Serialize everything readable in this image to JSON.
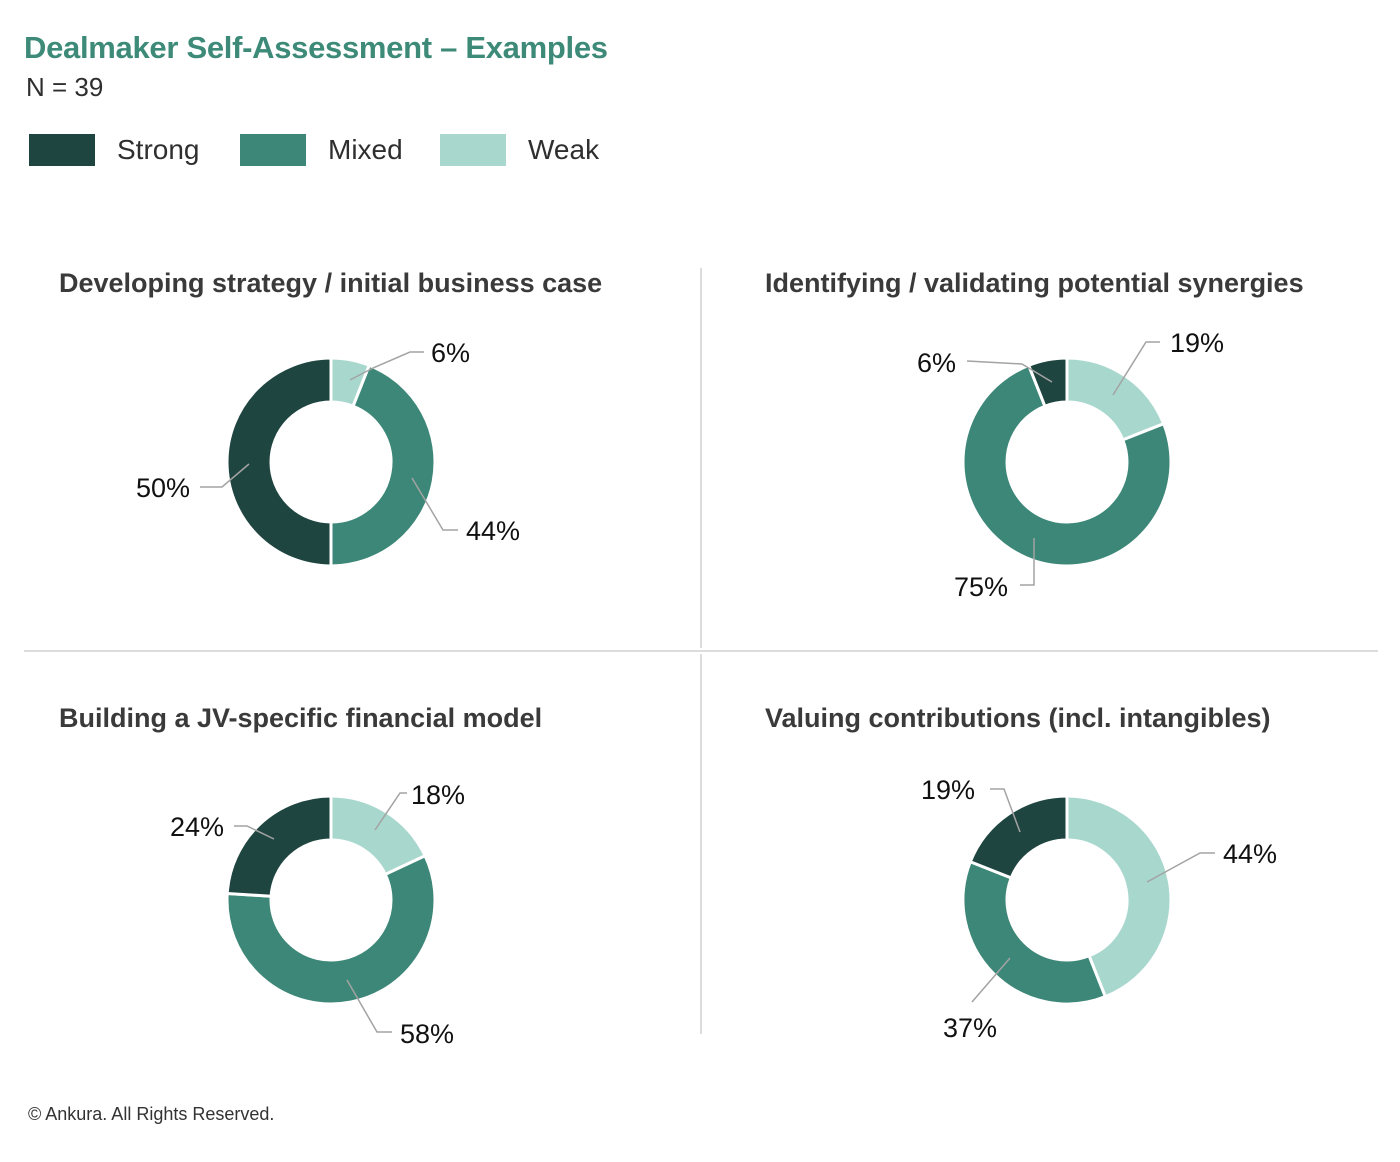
{
  "header": {
    "title": "Dealmaker Self-Assessment – Examples",
    "subtitle": "N = 39"
  },
  "legend": [
    {
      "label": "Strong",
      "color": "#1f4540"
    },
    {
      "label": "Mixed",
      "color": "#3d8778"
    },
    {
      "label": "Weak",
      "color": "#a8d8cd"
    }
  ],
  "chart_data": [
    {
      "type": "pie",
      "title": "Developing strategy / initial business case",
      "categories": [
        "Weak",
        "Mixed",
        "Strong"
      ],
      "values": [
        6,
        44,
        50
      ],
      "labels": [
        "6%",
        "44%",
        "50%"
      ]
    },
    {
      "type": "pie",
      "title": "Identifying / validating potential synergies",
      "categories": [
        "Weak",
        "Mixed",
        "Strong"
      ],
      "values": [
        19,
        75,
        6
      ],
      "labels": [
        "19%",
        "75%",
        "6%"
      ]
    },
    {
      "type": "pie",
      "title": "Building a JV-specific financial model",
      "categories": [
        "Weak",
        "Mixed",
        "Strong"
      ],
      "values": [
        18,
        58,
        24
      ],
      "labels": [
        "18%",
        "58%",
        "24%"
      ]
    },
    {
      "type": "pie",
      "title": "Valuing contributions (incl. intangibles)",
      "categories": [
        "Weak",
        "Mixed",
        "Strong"
      ],
      "values": [
        44,
        37,
        19
      ],
      "labels": [
        "44%",
        "37%",
        "19%"
      ]
    }
  ],
  "footer": "© Ankura. All Rights Reserved."
}
